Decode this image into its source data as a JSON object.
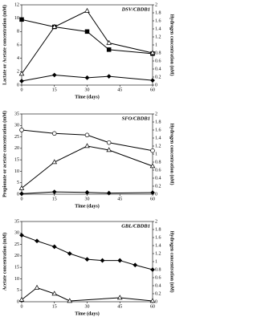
{
  "chart_data": [
    {
      "type": "line",
      "title": "DSV/CBDB1",
      "x_label": "Time (days)",
      "y_label": "Lactate or Acetate concentration (mM)",
      "y2_label": "Hydrogen concentration (nM)",
      "xlim": [
        0,
        60
      ],
      "xticks": [
        0,
        15,
        30,
        45,
        60
      ],
      "ylim": [
        0,
        12
      ],
      "yticks": [
        0,
        2,
        4,
        6,
        8,
        10,
        12
      ],
      "y2lim": [
        0,
        2
      ],
      "y2ticks": [
        0,
        0.2,
        0.4,
        0.6,
        0.8,
        1,
        1.2,
        1.4,
        1.6,
        1.8,
        2
      ],
      "series": [
        {
          "color": "#000000",
          "marker": "square",
          "filled": true,
          "x": [
            0,
            15,
            30,
            40,
            60
          ],
          "values": [
            9.8,
            8.7,
            8,
            5.3,
            4.7
          ]
        },
        {
          "color": "#000000",
          "marker": "triangle",
          "filled": false,
          "axis": "y2",
          "x": [
            0,
            15,
            30,
            40,
            60
          ],
          "values": [
            0.28,
            1.45,
            1.85,
            1.05,
            0.8
          ]
        },
        {
          "color": "#000000",
          "marker": "diamond",
          "filled": true,
          "x": [
            0,
            15,
            30,
            40,
            60
          ],
          "values": [
            0.6,
            1.5,
            1.1,
            1.3,
            0.7
          ]
        }
      ]
    },
    {
      "type": "line",
      "title": "SFO/CBDB1",
      "x_label": "Time (days)",
      "y_label": "Propionate or acetate concentration (mM)",
      "y2_label": "Hydrogen concentration (nM)",
      "xlim": [
        0,
        60
      ],
      "xticks": [
        0,
        15,
        30,
        45,
        60
      ],
      "ylim": [
        0,
        35
      ],
      "yticks": [
        0,
        5,
        10,
        15,
        20,
        25,
        30,
        35
      ],
      "y2lim": [
        0,
        2
      ],
      "y2ticks": [
        0,
        0.2,
        0.4,
        0.6,
        0.8,
        1,
        1.2,
        1.4,
        1.6,
        1.8,
        2
      ],
      "series": [
        {
          "color": "#000000",
          "marker": "circle",
          "filled": false,
          "x": [
            0,
            15,
            30,
            40,
            60
          ],
          "values": [
            28,
            26.5,
            25.8,
            22.5,
            19
          ]
        },
        {
          "color": "#000000",
          "marker": "triangle",
          "filled": false,
          "axis": "y2",
          "x": [
            0,
            15,
            30,
            40,
            60
          ],
          "values": [
            0.15,
            0.8,
            1.2,
            1.1,
            0.7
          ]
        },
        {
          "color": "#000000",
          "marker": "diamond",
          "filled": true,
          "x": [
            0,
            15,
            30,
            40,
            60
          ],
          "values": [
            0.2,
            1,
            0.8,
            0.5,
            0.7
          ]
        }
      ]
    },
    {
      "type": "line",
      "title": "GBL/CBDB1",
      "x_label": "Time (days)",
      "y_label": "Acetate concentration (mM)",
      "y2_label": "Hydrogen concentration (nM)",
      "xlim": [
        0,
        60
      ],
      "xticks": [
        0,
        15,
        30,
        45,
        60
      ],
      "ylim": [
        0,
        35
      ],
      "yticks": [
        0,
        5,
        10,
        15,
        20,
        25,
        30,
        35
      ],
      "y2lim": [
        0,
        2
      ],
      "y2ticks": [
        0,
        0.2,
        0.4,
        0.6,
        0.8,
        1,
        1.2,
        1.4,
        1.6,
        1.8,
        2
      ],
      "series": [
        {
          "color": "#000000",
          "marker": "diamond",
          "filled": true,
          "x": [
            0,
            7,
            15,
            22,
            30,
            37,
            45,
            52,
            60
          ],
          "values": [
            29,
            26.5,
            24,
            21,
            18.5,
            18,
            18,
            16,
            14
          ]
        },
        {
          "color": "#000000",
          "marker": "triangle",
          "filled": false,
          "axis": "y2",
          "x": [
            0,
            7,
            15,
            22,
            45,
            60
          ],
          "values": [
            0.05,
            0.35,
            0.2,
            0.02,
            0.1,
            0.02
          ]
        }
      ]
    }
  ]
}
